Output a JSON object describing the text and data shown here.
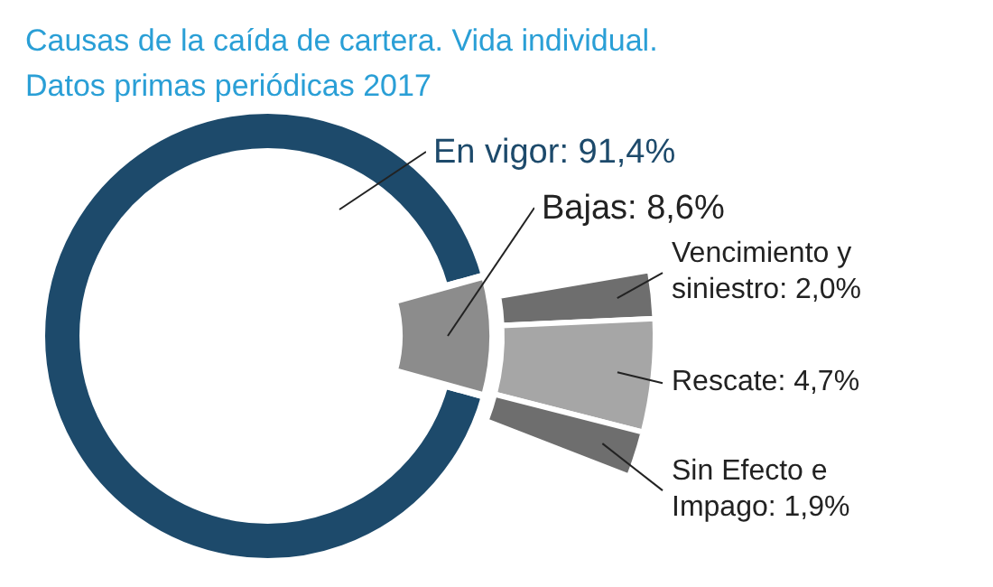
{
  "chart_data": [
    {
      "type": "donut",
      "title": "Causas de la caída de cartera. Vida individual.",
      "subtitle": "Datos primas periódicas 2017",
      "categories": [
        "En vigor",
        "Bajas"
      ],
      "values": [
        91.4,
        8.6
      ],
      "colors": [
        "#1d4a6b",
        "#8c8c8c"
      ],
      "value_labels": [
        "91,4%",
        "8,6%"
      ]
    },
    {
      "type": "donut",
      "categories": [
        "Vencimiento y siniestro",
        "Rescate",
        "Sin Efecto e Impago"
      ],
      "values": [
        2.0,
        4.7,
        1.9
      ],
      "colors": [
        "#6e6e6e",
        "#a6a6a6",
        "#6e6e6e"
      ],
      "value_labels": [
        "2,0%",
        "4,7%",
        "1,9%"
      ]
    }
  ]
}
